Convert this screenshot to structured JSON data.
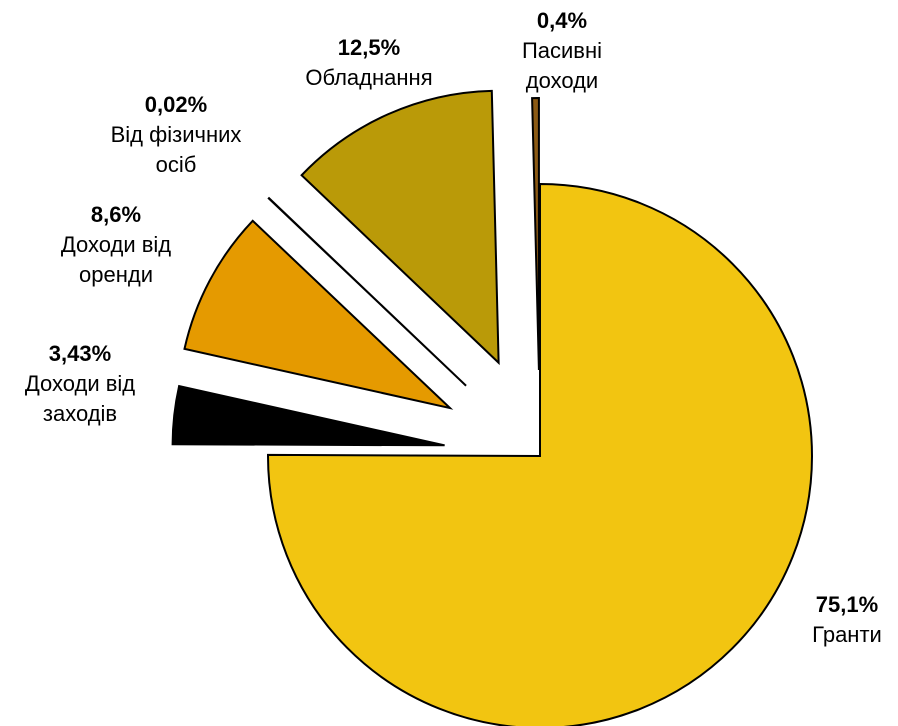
{
  "chart_data": {
    "type": "pie",
    "slices": [
      {
        "pct_label": "75,1%",
        "label_lines": [
          "Гранти"
        ],
        "value": 75.1,
        "color": "#F2C511"
      },
      {
        "pct_label": "3,43%",
        "label_lines": [
          "Доходи від",
          "заходів"
        ],
        "value": 3.43,
        "color": "#000000"
      },
      {
        "pct_label": "8,6%",
        "label_lines": [
          "Доходи від",
          "оренди"
        ],
        "value": 8.6,
        "color": "#E59A00"
      },
      {
        "pct_label": "0,02%",
        "label_lines": [
          "Від фізичних",
          "осіб"
        ],
        "value": 0.02,
        "color": "#C8A012"
      },
      {
        "pct_label": "12,5%",
        "label_lines": [
          "Обладнання"
        ],
        "value": 12.5,
        "color": "#BA9A08"
      },
      {
        "pct_label": "0,4%",
        "label_lines": [
          "Пасивні",
          "доходи"
        ],
        "value": 0.4,
        "color": "#8B5A14"
      }
    ],
    "legend": "none",
    "exploded": true
  }
}
